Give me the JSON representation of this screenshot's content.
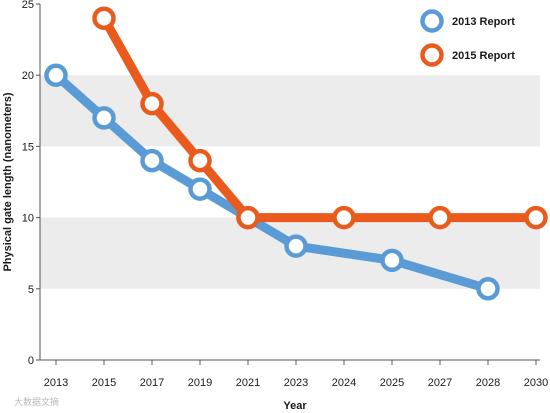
{
  "chart_data": {
    "type": "line",
    "title": "",
    "xlabel": "Year",
    "ylabel": "Physical gate length (nanometers)",
    "categories": [
      "2013",
      "2015",
      "2017",
      "2019",
      "2021",
      "2023",
      "2024",
      "2025",
      "2027",
      "2028",
      "2030"
    ],
    "ylim": [
      0,
      25
    ],
    "yticks": [
      0,
      5,
      10,
      15,
      20,
      25
    ],
    "grid": "alternating horizontal bands",
    "legend_position": "top-right",
    "series": [
      {
        "name": "2013 Report",
        "color": "#5b9bd5",
        "points": [
          {
            "x": "2013",
            "y": 20
          },
          {
            "x": "2015",
            "y": 17
          },
          {
            "x": "2017",
            "y": 14
          },
          {
            "x": "2019",
            "y": 12
          },
          {
            "x": "2021",
            "y": 10
          },
          {
            "x": "2023",
            "y": 8
          },
          {
            "x": "2025",
            "y": 7
          },
          {
            "x": "2028",
            "y": 5
          }
        ]
      },
      {
        "name": "2015 Report",
        "color": "#ea5a1d",
        "points": [
          {
            "x": "2015",
            "y": 24
          },
          {
            "x": "2017",
            "y": 18
          },
          {
            "x": "2019",
            "y": 14
          },
          {
            "x": "2021",
            "y": 10
          },
          {
            "x": "2024",
            "y": 10
          },
          {
            "x": "2027",
            "y": 10
          },
          {
            "x": "2030",
            "y": 10
          }
        ]
      }
    ]
  },
  "watermark": "大数据文摘"
}
